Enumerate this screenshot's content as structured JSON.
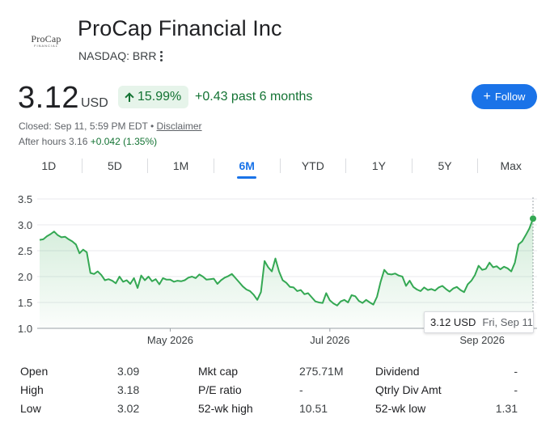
{
  "header": {
    "logo_main": "ProCap",
    "logo_sub": "FINANCIAL",
    "company_name": "ProCap Financial Inc",
    "ticker": "NASDAQ: BRR",
    "more_icon": "more-vert-icon"
  },
  "quote": {
    "price": "3.12",
    "currency": "USD",
    "change_pct": "15.99%",
    "change_abs": "+0.43 past 6 months",
    "closed_text": "Closed: Sep 11, 5:59 PM EDT",
    "separator": "•",
    "disclaimer": "Disclaimer",
    "after_hours_label": "After hours 3.16",
    "after_hours_change": "+0.042 (1.35%)"
  },
  "follow": {
    "label": "Follow",
    "icon": "plus-icon"
  },
  "tabs": [
    {
      "label": "1D",
      "active": false
    },
    {
      "label": "5D",
      "active": false
    },
    {
      "label": "1M",
      "active": false
    },
    {
      "label": "6M",
      "active": true
    },
    {
      "label": "YTD",
      "active": false
    },
    {
      "label": "1Y",
      "active": false
    },
    {
      "label": "5Y",
      "active": false
    },
    {
      "label": "Max",
      "active": false
    }
  ],
  "chart_data": {
    "type": "area",
    "ylim": [
      1.0,
      3.5
    ],
    "yticks": [
      1.0,
      1.5,
      2.0,
      2.5,
      3.0,
      3.5
    ],
    "ytick_labels": [
      "1.0",
      "1.5",
      "2.0",
      "2.5",
      "3.0",
      "3.5"
    ],
    "x_ticks": [
      {
        "label": "May 2026",
        "index": 36
      },
      {
        "label": "Jul 2026",
        "index": 80
      },
      {
        "label": "Sep 2026",
        "index": 122
      }
    ],
    "series": [
      {
        "color": "#34a853",
        "values": [
          2.71,
          2.72,
          2.78,
          2.82,
          2.87,
          2.8,
          2.76,
          2.77,
          2.72,
          2.68,
          2.62,
          2.45,
          2.52,
          2.47,
          2.07,
          2.05,
          2.1,
          2.03,
          1.93,
          1.95,
          1.92,
          1.87,
          2.0,
          1.9,
          1.93,
          1.86,
          1.97,
          1.78,
          2.02,
          1.93,
          2.0,
          1.91,
          1.95,
          1.85,
          1.97,
          1.94,
          1.94,
          1.9,
          1.92,
          1.91,
          1.93,
          1.98,
          2.0,
          1.97,
          2.04,
          2.0,
          1.94,
          1.95,
          1.96,
          1.86,
          1.93,
          1.98,
          2.01,
          2.05,
          1.97,
          1.89,
          1.81,
          1.75,
          1.72,
          1.65,
          1.55,
          1.7,
          2.3,
          2.18,
          2.1,
          2.35,
          2.1,
          1.93,
          1.88,
          1.8,
          1.79,
          1.72,
          1.74,
          1.66,
          1.68,
          1.6,
          1.52,
          1.5,
          1.49,
          1.68,
          1.54,
          1.48,
          1.44,
          1.52,
          1.55,
          1.5,
          1.64,
          1.62,
          1.53,
          1.49,
          1.55,
          1.5,
          1.46,
          1.61,
          1.9,
          2.13,
          2.05,
          2.04,
          2.06,
          2.02,
          2.0,
          1.82,
          1.92,
          1.8,
          1.75,
          1.72,
          1.79,
          1.74,
          1.76,
          1.73,
          1.79,
          1.82,
          1.76,
          1.71,
          1.77,
          1.8,
          1.74,
          1.7,
          1.85,
          1.92,
          2.03,
          2.21,
          2.13,
          2.15,
          2.27,
          2.18,
          2.2,
          2.14,
          2.19,
          2.16,
          2.1,
          2.27,
          2.62,
          2.68,
          2.8,
          2.93,
          3.12
        ]
      }
    ],
    "tooltip": {
      "value": "3.12 USD",
      "date": "Fri, Sep 11"
    }
  },
  "stats": [
    {
      "l1": "Open",
      "v1": "3.09",
      "l2": "Mkt cap",
      "v2": "275.71M",
      "l3": "Dividend",
      "v3": "-"
    },
    {
      "l1": "High",
      "v1": "3.18",
      "l2": "P/E ratio",
      "v2": "-",
      "l3": "Qtrly Div Amt",
      "v3": "-"
    },
    {
      "l1": "Low",
      "v1": "3.02",
      "l2": "52-wk high",
      "v2": "10.51",
      "l3": "52-wk low",
      "v3": "1.31"
    }
  ],
  "colors": {
    "accent": "#1a73e8",
    "positive": "#137333",
    "positive_bg": "#e6f4ea",
    "line": "#34a853"
  }
}
